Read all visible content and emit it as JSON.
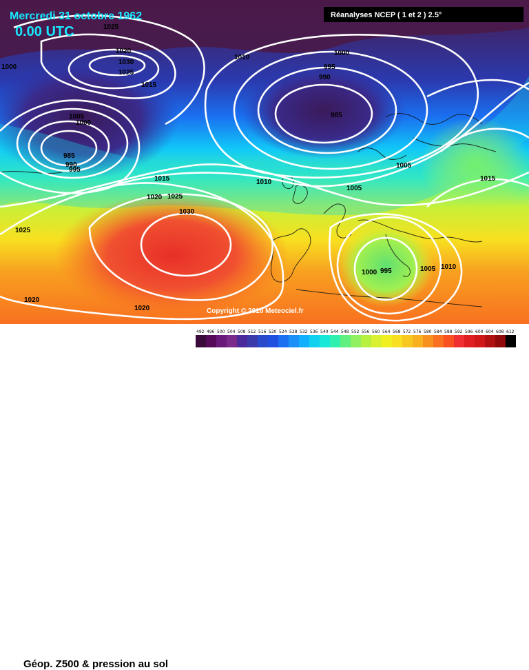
{
  "header": {
    "date": "Mercredi 31 octobre 1962",
    "time": "0.00 UTC",
    "source": "Réanalyses NCEP ( 1 et 2 ) 2.5°"
  },
  "copyright": "Copyright © 2010 Meteociel.fr",
  "legend": {
    "title": "Géop. Z500 & pression au sol",
    "scale_values": [
      "492",
      "496",
      "500",
      "504",
      "508",
      "512",
      "516",
      "520",
      "524",
      "528",
      "532",
      "536",
      "540",
      "544",
      "548",
      "552",
      "556",
      "560",
      "564",
      "568",
      "572",
      "576",
      "580",
      "584",
      "588",
      "592",
      "596",
      "600",
      "604",
      "608",
      "612"
    ],
    "scale_colors": [
      "#3a0a3a",
      "#550a5a",
      "#6a1a7a",
      "#7a2a8a",
      "#4a2a9a",
      "#3a3aaa",
      "#2a4acc",
      "#2050e0",
      "#1a70f0",
      "#1a90f8",
      "#10b0ff",
      "#10d0f0",
      "#18e8d8",
      "#30f0b0",
      "#60f080",
      "#90f060",
      "#b8f040",
      "#d8f030",
      "#f0f020",
      "#f8e020",
      "#f8c820",
      "#f8b020",
      "#f89020",
      "#f87020",
      "#f85020",
      "#f03030",
      "#e02020",
      "#d01818",
      "#b01010",
      "#900808",
      "#000000"
    ]
  },
  "isobar_labels": [
    "1025",
    "1020",
    "1030",
    "1025",
    "1015",
    "1000",
    "1010",
    "1000",
    "995",
    "990",
    "985",
    "1005",
    "1000",
    "985",
    "990",
    "995",
    "1005",
    "1010",
    "1015",
    "1025",
    "1020",
    "1030",
    "1005",
    "1015",
    "1025",
    "1020",
    "1000",
    "995",
    "1005",
    "1010",
    "1020"
  ]
}
